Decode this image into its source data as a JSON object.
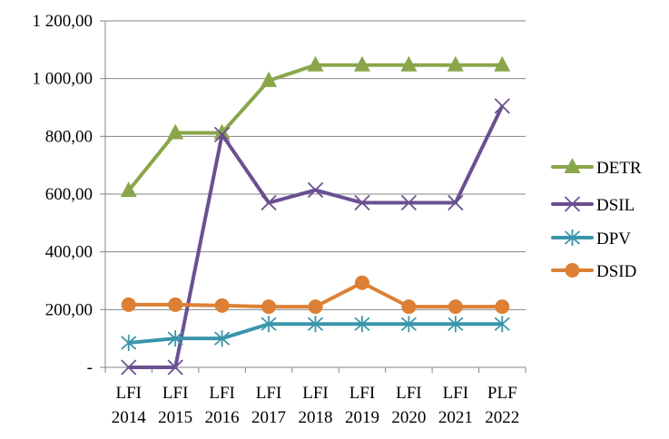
{
  "chart_data": {
    "type": "line",
    "title": "",
    "xlabel": "",
    "ylabel": "",
    "categories": [
      [
        "LFI",
        "2014"
      ],
      [
        "LFI",
        "2015"
      ],
      [
        "LFI",
        "2016"
      ],
      [
        "LFI",
        "2017"
      ],
      [
        "LFI",
        "2018"
      ],
      [
        "LFI",
        "2019"
      ],
      [
        "LFI",
        "2020"
      ],
      [
        "LFI",
        "2021"
      ],
      [
        "PLF",
        "2022"
      ]
    ],
    "ylim": [
      0,
      1200
    ],
    "yticks": [
      0,
      200,
      400,
      600,
      800,
      1000,
      1200
    ],
    "ytick_labels": [
      "-",
      "200,00",
      "400,00",
      "600,00",
      "800,00",
      "1 000,00",
      "1 200,00"
    ],
    "grid": true,
    "legend_position": "right",
    "series": [
      {
        "name": "DETR",
        "color": "#8aa64a",
        "marker": "triangle",
        "values": [
          612,
          812,
          812,
          993,
          1047,
          1047,
          1047,
          1047,
          1047
        ]
      },
      {
        "name": "DSIL",
        "color": "#6a5090",
        "marker": "x",
        "values": [
          0,
          0,
          806,
          570,
          614,
          570,
          570,
          570,
          905
        ]
      },
      {
        "name": "DPV",
        "color": "#3a95aa",
        "marker": "star",
        "values": [
          85,
          100,
          100,
          150,
          150,
          150,
          150,
          150,
          150
        ]
      },
      {
        "name": "DSID",
        "color": "#dd8035",
        "marker": "circle",
        "values": [
          217,
          217,
          214,
          210,
          210,
          293,
          210,
          210,
          210
        ]
      }
    ]
  }
}
